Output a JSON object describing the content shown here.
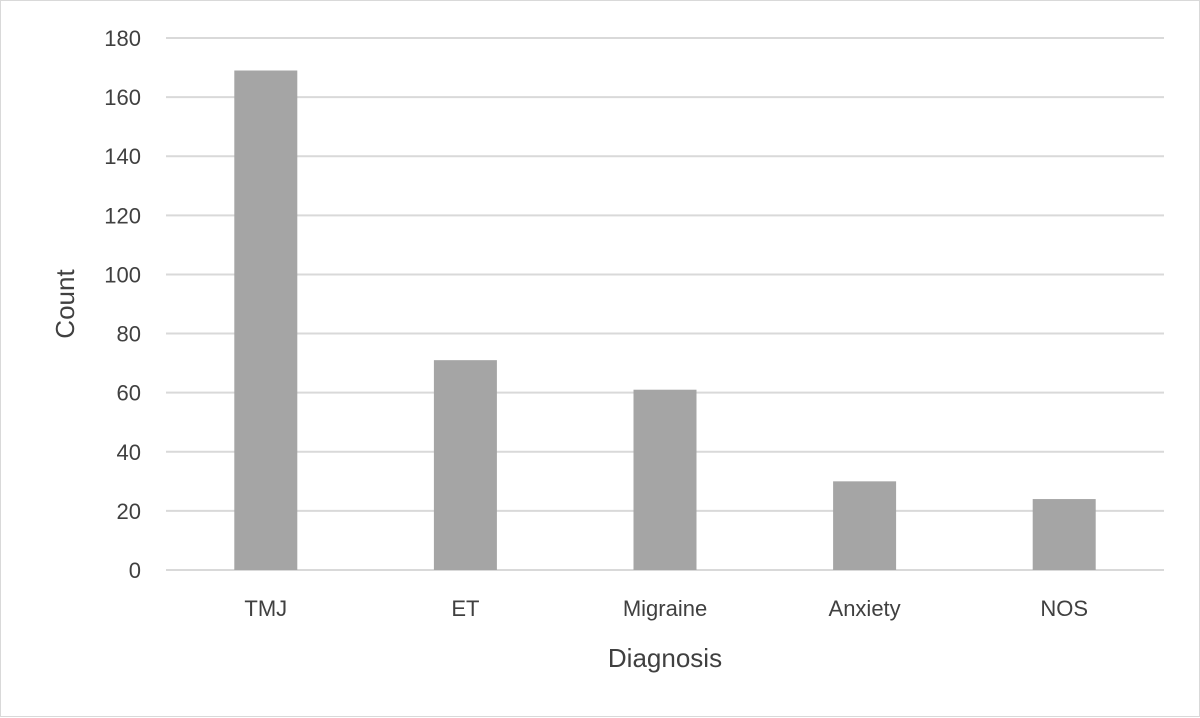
{
  "chart_data": {
    "type": "bar",
    "categories": [
      "TMJ",
      "ET",
      "Migraine",
      "Anxiety",
      "NOS"
    ],
    "values": [
      169,
      71,
      61,
      30,
      24
    ],
    "title": "",
    "xlabel": "Diagnosis",
    "ylabel": "Count",
    "ylim": [
      0,
      180
    ],
    "yticks": [
      0,
      20,
      40,
      60,
      80,
      100,
      120,
      140,
      160,
      180
    ],
    "grid": true,
    "legend": "none",
    "bar_color": "#a5a5a5",
    "grid_color": "#d9d9d9"
  }
}
